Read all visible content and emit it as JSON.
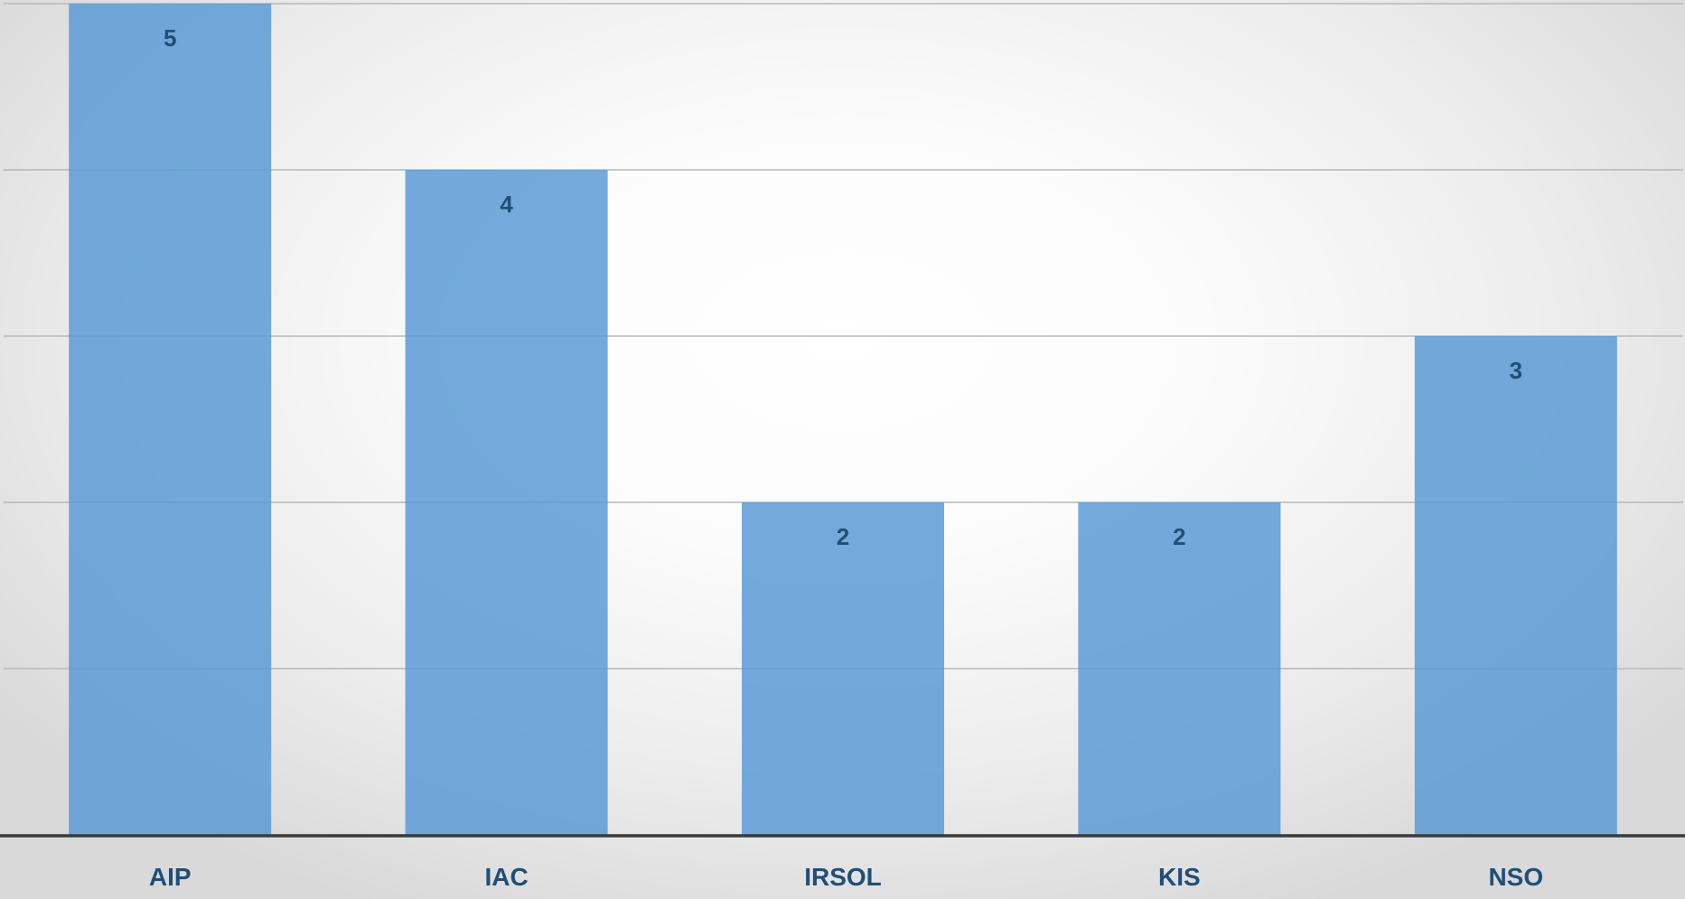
{
  "chart_data": {
    "type": "bar",
    "categories": [
      "AIP",
      "IAC",
      "IRSOL",
      "KIS",
      "NSO"
    ],
    "values": [
      5,
      4,
      2,
      2,
      3
    ],
    "data_labels": [
      "5",
      "4",
      "2",
      "2",
      "3"
    ],
    "title": "",
    "xlabel": "",
    "ylabel": "",
    "ylim": [
      0,
      5
    ],
    "grid": true,
    "legend": "none",
    "colors": {
      "bar": "#5b9bd5",
      "label": "#1f4e79",
      "grid": "#b8b8b8",
      "axis": "#3a3a3a"
    }
  }
}
